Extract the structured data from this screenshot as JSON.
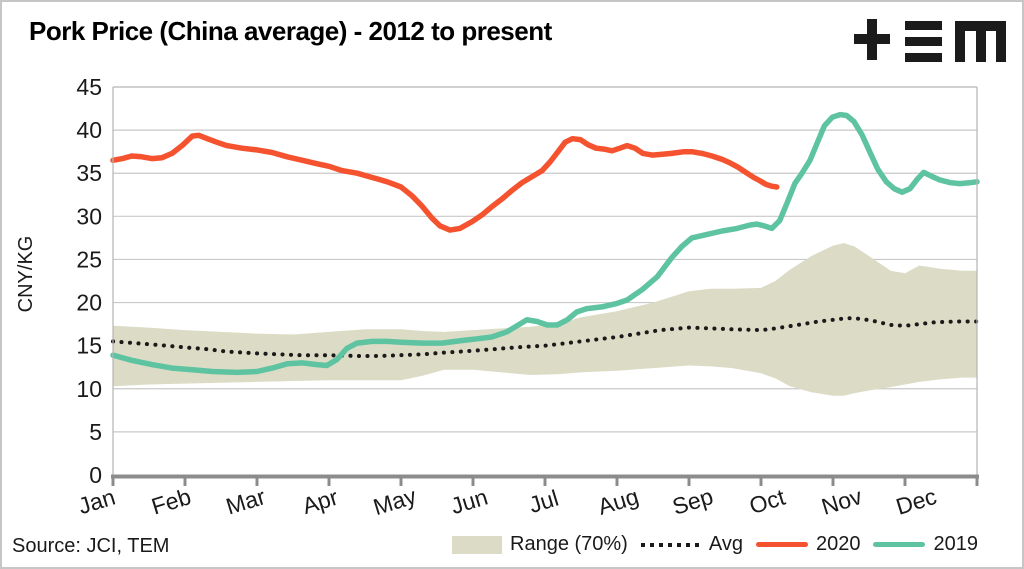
{
  "header": {
    "title": "Pork Price (China average) - 2012 to present",
    "logo_name": "TEM"
  },
  "footer": {
    "source": "Source: JCI, TEM"
  },
  "chart_data": {
    "type": "line",
    "title": "Pork Price (China average) - 2012 to present",
    "xlabel": "",
    "ylabel": "CNY/KG",
    "ylim": [
      0,
      45
    ],
    "ytick_step": 5,
    "grid": true,
    "legend_position": "bottom-right",
    "x_labels": [
      "Jan",
      "Feb",
      "Mar",
      "Apr",
      "May",
      "Jun",
      "Jul",
      "Aug",
      "Sep",
      "Oct",
      "Nov",
      "Dec"
    ],
    "x_unit": "month (0 = Jan 1, fractional months)",
    "colors": {
      "band": "#dcdcc6",
      "avg": "#1a1a1a",
      "y2020": "#f5532f",
      "y2019": "#5ec3a1",
      "gridline": "#c9c9c9",
      "spine": "#b5b5b5",
      "axis": "#8c8c8c",
      "text": "#1a1a1a"
    },
    "series": [
      {
        "name": "Range (70%)",
        "type": "band",
        "color": "#dcdcc6",
        "points_lo_hi": [
          [
            0,
            10.3,
            17.3
          ],
          [
            0.5,
            10.5,
            17.1
          ],
          [
            1.0,
            10.6,
            16.8
          ],
          [
            1.5,
            10.7,
            16.6
          ],
          [
            2.0,
            10.8,
            16.4
          ],
          [
            2.5,
            10.9,
            16.3
          ],
          [
            3.0,
            11.0,
            16.6
          ],
          [
            3.5,
            11.0,
            16.9
          ],
          [
            4.0,
            11.0,
            16.9
          ],
          [
            4.3,
            11.5,
            16.7
          ],
          [
            4.6,
            12.2,
            16.6
          ],
          [
            5.0,
            12.2,
            16.8
          ],
          [
            5.4,
            11.9,
            17.0
          ],
          [
            5.8,
            11.6,
            17.2
          ],
          [
            6.2,
            11.7,
            17.6
          ],
          [
            6.5,
            11.9,
            18.3
          ],
          [
            7.0,
            12.1,
            19.0
          ],
          [
            7.5,
            12.4,
            20.0
          ],
          [
            8.0,
            12.7,
            21.3
          ],
          [
            8.3,
            12.6,
            21.6
          ],
          [
            8.6,
            12.4,
            21.6
          ],
          [
            9.0,
            11.8,
            21.7
          ],
          [
            9.2,
            11.2,
            22.5
          ],
          [
            9.4,
            10.3,
            23.8
          ],
          [
            9.7,
            9.6,
            25.4
          ],
          [
            10.0,
            9.2,
            26.6
          ],
          [
            10.15,
            9.2,
            26.9
          ],
          [
            10.3,
            9.5,
            26.5
          ],
          [
            10.5,
            9.8,
            25.4
          ],
          [
            10.8,
            10.2,
            23.7
          ],
          [
            11.0,
            10.5,
            23.4
          ],
          [
            11.2,
            10.8,
            24.3
          ],
          [
            11.5,
            11.1,
            23.9
          ],
          [
            11.8,
            11.3,
            23.7
          ],
          [
            12.0,
            11.3,
            23.7
          ]
        ]
      },
      {
        "name": "Avg",
        "type": "line",
        "style": "dotted",
        "color": "#1a1a1a",
        "points": [
          [
            0,
            15.5
          ],
          [
            0.3,
            15.3
          ],
          [
            0.6,
            15.1
          ],
          [
            1.0,
            14.8
          ],
          [
            1.3,
            14.6
          ],
          [
            1.6,
            14.3
          ],
          [
            2.0,
            14.1
          ],
          [
            2.3,
            14.0
          ],
          [
            2.6,
            13.9
          ],
          [
            3.0,
            13.9
          ],
          [
            3.4,
            13.8
          ],
          [
            3.7,
            13.8
          ],
          [
            4.0,
            13.9
          ],
          [
            4.3,
            14.0
          ],
          [
            4.6,
            14.2
          ],
          [
            5.0,
            14.4
          ],
          [
            5.3,
            14.6
          ],
          [
            5.6,
            14.8
          ],
          [
            6.0,
            15.0
          ],
          [
            6.3,
            15.3
          ],
          [
            6.6,
            15.6
          ],
          [
            7.0,
            16.0
          ],
          [
            7.3,
            16.4
          ],
          [
            7.6,
            16.8
          ],
          [
            8.0,
            17.1
          ],
          [
            8.3,
            17.0
          ],
          [
            8.6,
            16.9
          ],
          [
            9.0,
            16.8
          ],
          [
            9.2,
            17.0
          ],
          [
            9.5,
            17.4
          ],
          [
            9.8,
            17.8
          ],
          [
            10.0,
            18.0
          ],
          [
            10.2,
            18.2
          ],
          [
            10.4,
            18.1
          ],
          [
            10.6,
            17.8
          ],
          [
            10.8,
            17.4
          ],
          [
            11.0,
            17.3
          ],
          [
            11.2,
            17.5
          ],
          [
            11.4,
            17.7
          ],
          [
            11.7,
            17.8
          ],
          [
            12.0,
            17.8
          ]
        ]
      },
      {
        "name": "2020",
        "type": "line",
        "style": "solid",
        "color": "#f5532f",
        "points": [
          [
            0,
            36.5
          ],
          [
            0.13,
            36.7
          ],
          [
            0.26,
            37.0
          ],
          [
            0.4,
            36.9
          ],
          [
            0.54,
            36.7
          ],
          [
            0.68,
            36.8
          ],
          [
            0.82,
            37.3
          ],
          [
            0.96,
            38.2
          ],
          [
            1.1,
            39.3
          ],
          [
            1.19,
            39.4
          ],
          [
            1.31,
            39.0
          ],
          [
            1.44,
            38.6
          ],
          [
            1.58,
            38.2
          ],
          [
            1.79,
            37.9
          ],
          [
            2.0,
            37.7
          ],
          [
            2.21,
            37.4
          ],
          [
            2.42,
            36.9
          ],
          [
            2.63,
            36.5
          ],
          [
            2.83,
            36.1
          ],
          [
            3.0,
            35.8
          ],
          [
            3.18,
            35.3
          ],
          [
            3.39,
            35.0
          ],
          [
            3.6,
            34.5
          ],
          [
            3.81,
            34.0
          ],
          [
            4.0,
            33.4
          ],
          [
            4.15,
            32.4
          ],
          [
            4.29,
            31.2
          ],
          [
            4.43,
            29.8
          ],
          [
            4.54,
            28.9
          ],
          [
            4.68,
            28.4
          ],
          [
            4.82,
            28.6
          ],
          [
            4.99,
            29.4
          ],
          [
            5.13,
            30.2
          ],
          [
            5.26,
            31.1
          ],
          [
            5.4,
            32.0
          ],
          [
            5.54,
            33.0
          ],
          [
            5.68,
            33.9
          ],
          [
            5.82,
            34.6
          ],
          [
            5.96,
            35.3
          ],
          [
            6.07,
            36.3
          ],
          [
            6.18,
            37.5
          ],
          [
            6.28,
            38.6
          ],
          [
            6.38,
            39.0
          ],
          [
            6.49,
            38.9
          ],
          [
            6.6,
            38.3
          ],
          [
            6.71,
            37.9
          ],
          [
            6.82,
            37.8
          ],
          [
            6.93,
            37.6
          ],
          [
            7.04,
            37.9
          ],
          [
            7.14,
            38.2
          ],
          [
            7.25,
            37.9
          ],
          [
            7.36,
            37.3
          ],
          [
            7.49,
            37.1
          ],
          [
            7.63,
            37.2
          ],
          [
            7.76,
            37.3
          ],
          [
            7.93,
            37.5
          ],
          [
            8.04,
            37.5
          ],
          [
            8.18,
            37.3
          ],
          [
            8.32,
            37.0
          ],
          [
            8.46,
            36.6
          ],
          [
            8.57,
            36.2
          ],
          [
            8.68,
            35.7
          ],
          [
            8.79,
            35.1
          ],
          [
            8.9,
            34.5
          ],
          [
            8.99,
            34.1
          ],
          [
            9.07,
            33.7
          ],
          [
            9.15,
            33.5
          ],
          [
            9.22,
            33.4
          ]
        ]
      },
      {
        "name": "2019",
        "type": "line",
        "style": "solid",
        "color": "#5ec3a1",
        "points": [
          [
            0,
            13.9
          ],
          [
            0.26,
            13.3
          ],
          [
            0.54,
            12.8
          ],
          [
            0.82,
            12.4
          ],
          [
            1.1,
            12.2
          ],
          [
            1.38,
            12.0
          ],
          [
            1.72,
            11.9
          ],
          [
            2.0,
            12.0
          ],
          [
            2.21,
            12.4
          ],
          [
            2.42,
            12.9
          ],
          [
            2.63,
            13.0
          ],
          [
            2.83,
            12.8
          ],
          [
            2.97,
            12.7
          ],
          [
            3.11,
            13.4
          ],
          [
            3.25,
            14.7
          ],
          [
            3.39,
            15.3
          ],
          [
            3.6,
            15.5
          ],
          [
            3.81,
            15.5
          ],
          [
            4.0,
            15.4
          ],
          [
            4.29,
            15.3
          ],
          [
            4.57,
            15.3
          ],
          [
            4.85,
            15.6
          ],
          [
            5.06,
            15.8
          ],
          [
            5.26,
            16.0
          ],
          [
            5.47,
            16.6
          ],
          [
            5.61,
            17.3
          ],
          [
            5.75,
            18.0
          ],
          [
            5.89,
            17.8
          ],
          [
            6.03,
            17.4
          ],
          [
            6.17,
            17.4
          ],
          [
            6.31,
            18.0
          ],
          [
            6.44,
            18.9
          ],
          [
            6.58,
            19.3
          ],
          [
            6.79,
            19.5
          ],
          [
            7.0,
            19.9
          ],
          [
            7.14,
            20.3
          ],
          [
            7.35,
            21.5
          ],
          [
            7.56,
            23.0
          ],
          [
            7.76,
            25.2
          ],
          [
            7.9,
            26.5
          ],
          [
            8.04,
            27.5
          ],
          [
            8.25,
            27.9
          ],
          [
            8.46,
            28.3
          ],
          [
            8.67,
            28.6
          ],
          [
            8.85,
            29.0
          ],
          [
            8.94,
            29.1
          ],
          [
            9.04,
            28.9
          ],
          [
            9.15,
            28.6
          ],
          [
            9.26,
            29.5
          ],
          [
            9.36,
            31.5
          ],
          [
            9.47,
            33.8
          ],
          [
            9.57,
            35.0
          ],
          [
            9.68,
            36.5
          ],
          [
            9.78,
            38.5
          ],
          [
            9.88,
            40.5
          ],
          [
            9.99,
            41.5
          ],
          [
            10.1,
            41.8
          ],
          [
            10.19,
            41.7
          ],
          [
            10.29,
            41.0
          ],
          [
            10.4,
            39.5
          ],
          [
            10.51,
            37.5
          ],
          [
            10.62,
            35.5
          ],
          [
            10.74,
            34.0
          ],
          [
            10.85,
            33.2
          ],
          [
            10.96,
            32.8
          ],
          [
            11.07,
            33.2
          ],
          [
            11.17,
            34.3
          ],
          [
            11.26,
            35.1
          ],
          [
            11.38,
            34.6
          ],
          [
            11.49,
            34.2
          ],
          [
            11.63,
            33.9
          ],
          [
            11.76,
            33.8
          ],
          [
            11.9,
            33.9
          ],
          [
            12.0,
            34.0
          ]
        ]
      }
    ]
  }
}
